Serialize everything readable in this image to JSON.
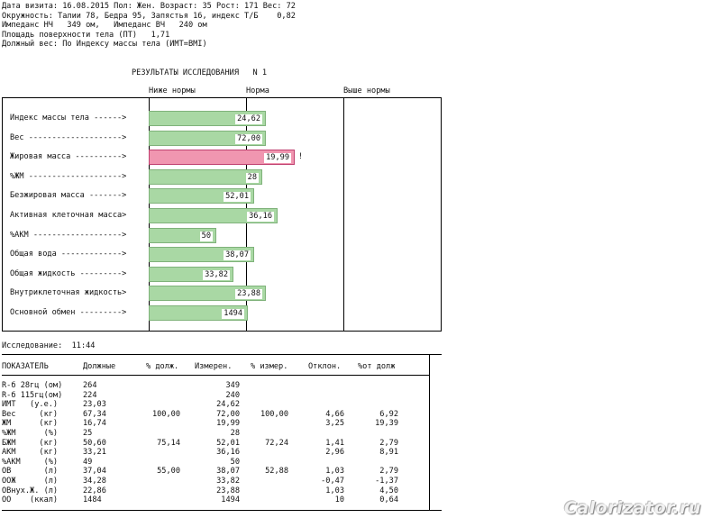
{
  "header": {
    "lines": [
      "Дата визита: 16.08.2015 Пол: Жен. Возраст: 35 Рост: 171 Вес: 72",
      "Окружность: Талии 78, Бедра 95, Запястья 16, индекс Т/Б    0,82",
      "Импеданс НЧ   349 ом,   Импеданс ВЧ   240 ом",
      "Площадь поверхности тела (ПТ)   1,71",
      "Должный вес: По Индексу массы тела (ИМТ=BMI)"
    ]
  },
  "results_title": "РЕЗУЛЬТАТЫ ИССЛЕДОВАНИЯ   N 1",
  "zones": {
    "below": "Ниже нормы",
    "normal": "Норма",
    "above": "Выше нормы"
  },
  "colors": {
    "normal_bar": "#a9d8a4",
    "high_bar": "#f096b0"
  },
  "bars": [
    {
      "label": "Индекс массы тела ------>",
      "value": "24,62",
      "fill": 0.4,
      "status": "normal",
      "flag": ""
    },
    {
      "label": "Вес -------------------->",
      "value": "72,00",
      "fill": 0.4,
      "status": "normal",
      "flag": ""
    },
    {
      "label": "Жировая масса ---------->",
      "value": "19,99",
      "fill": 0.5,
      "status": "high",
      "flag": "!"
    },
    {
      "label": "%ЖМ -------------------->",
      "value": "28",
      "fill": 0.39,
      "status": "normal",
      "flag": ""
    },
    {
      "label": "Безжировая масса ------->",
      "value": "52,01",
      "fill": 0.36,
      "status": "normal",
      "flag": ""
    },
    {
      "label": "Активная клеточная масса>",
      "value": "36,16",
      "fill": 0.44,
      "status": "normal",
      "flag": ""
    },
    {
      "label": "%АКМ ------------------->",
      "value": "50",
      "fill": 0.23,
      "status": "normal",
      "flag": ""
    },
    {
      "label": "Общая вода ------------->",
      "value": "38,07",
      "fill": 0.36,
      "status": "normal",
      "flag": ""
    },
    {
      "label": "Общая жидкость --------->",
      "value": "33,82",
      "fill": 0.29,
      "status": "normal",
      "flag": ""
    },
    {
      "label": "Внутриклеточная жидкость>",
      "value": "23,88",
      "fill": 0.4,
      "status": "normal",
      "flag": ""
    },
    {
      "label": "Основной обмен --------->",
      "value": "1494",
      "fill": 0.34,
      "status": "normal",
      "flag": ""
    }
  ],
  "study_time": "Исследование:  11:44",
  "table": {
    "headers": [
      "ПОКАЗАТЕЛЬ",
      "Должные",
      "% долж.",
      "Измерен.",
      "% измер.",
      "Отклон.",
      "%от долж"
    ],
    "rows": [
      [
        "R-б 28гц (ом)",
        "264",
        "",
        "349",
        "",
        "",
        ""
      ],
      [
        "R-б 115гц(ом)",
        "224",
        "",
        "240",
        "",
        "",
        ""
      ],
      [
        "ИМТ   (у.е.)",
        "23,03",
        "",
        "24,62",
        "",
        "",
        ""
      ],
      [
        "Вес     (кг)",
        "67,34",
        "100,00",
        "72,00",
        "100,00",
        "4,66",
        "6,92"
      ],
      [
        "ЖМ      (кг)",
        "16,74",
        "",
        "19,99",
        "",
        "3,25",
        "19,39"
      ],
      [
        "%ЖМ      (%)",
        "25",
        "",
        "28",
        "",
        "",
        ""
      ],
      [
        "БЖМ     (кг)",
        "50,60",
        "75,14",
        "52,01",
        "72,24",
        "1,41",
        "2,79"
      ],
      [
        "АКМ     (кг)",
        "33,21",
        "",
        "36,16",
        "",
        "2,96",
        "8,91"
      ],
      [
        "%АКМ     (%)",
        "49",
        "",
        "50",
        "",
        "",
        ""
      ],
      [
        "ОВ       (л)",
        "37,04",
        "55,00",
        "38,07",
        "52,88",
        "1,03",
        "2,79"
      ],
      [
        "ООЖ      (л)",
        "34,28",
        "",
        "33,82",
        "",
        "-0,47",
        "-1,37"
      ],
      [
        "ОВнух.Ж. (л)",
        "22,86",
        "",
        "23,88",
        "",
        "1,03",
        "4,50"
      ],
      [
        "ОО    (ккал)",
        "1484",
        "",
        "1494",
        "",
        "10",
        "0,64"
      ]
    ]
  },
  "watermark": "Calorizator.ru"
}
